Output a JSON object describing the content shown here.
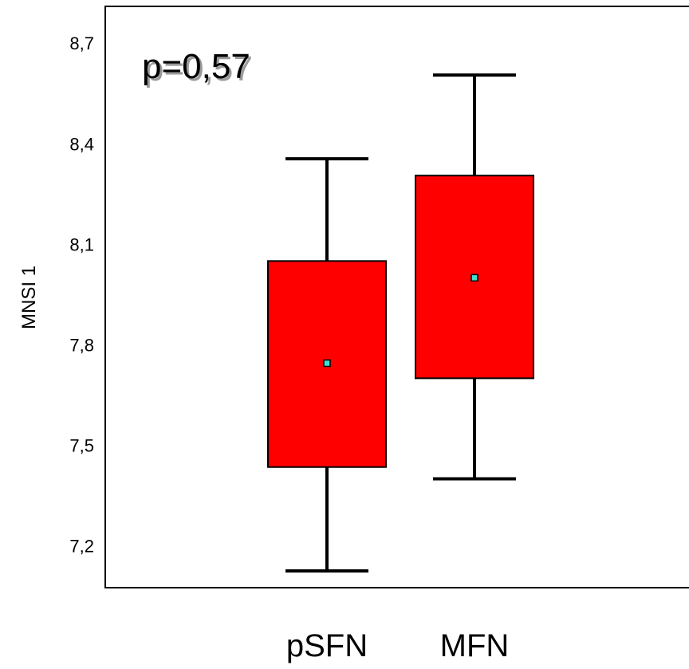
{
  "chart_data": {
    "type": "boxplot",
    "title": "",
    "xlabel": "",
    "ylabel": "MNSI 1",
    "annotation": "p=0,57",
    "ylim": [
      7.075,
      8.81
    ],
    "yticks": [
      "7,2",
      "7,5",
      "7,8",
      "8,1",
      "8,4",
      "8,7"
    ],
    "ytick_values": [
      7.2,
      7.5,
      7.8,
      8.1,
      8.4,
      8.7
    ],
    "categories": [
      "pSFN",
      "MFN"
    ],
    "boxes": [
      {
        "category": "pSFN",
        "whisker_low": 7.125,
        "q1": 7.435,
        "median": 7.745,
        "q3": 8.05,
        "whisker_high": 8.355
      },
      {
        "category": "MFN",
        "whisker_low": 7.4,
        "q1": 7.7,
        "median": 8.0,
        "q3": 8.305,
        "whisker_high": 8.605
      }
    ],
    "grid": false,
    "legend": "none",
    "colors": {
      "box_fill": "#ff0000",
      "box_stroke": "#000000",
      "median_marker": "#40e0d0",
      "whisker": "#000000"
    }
  }
}
